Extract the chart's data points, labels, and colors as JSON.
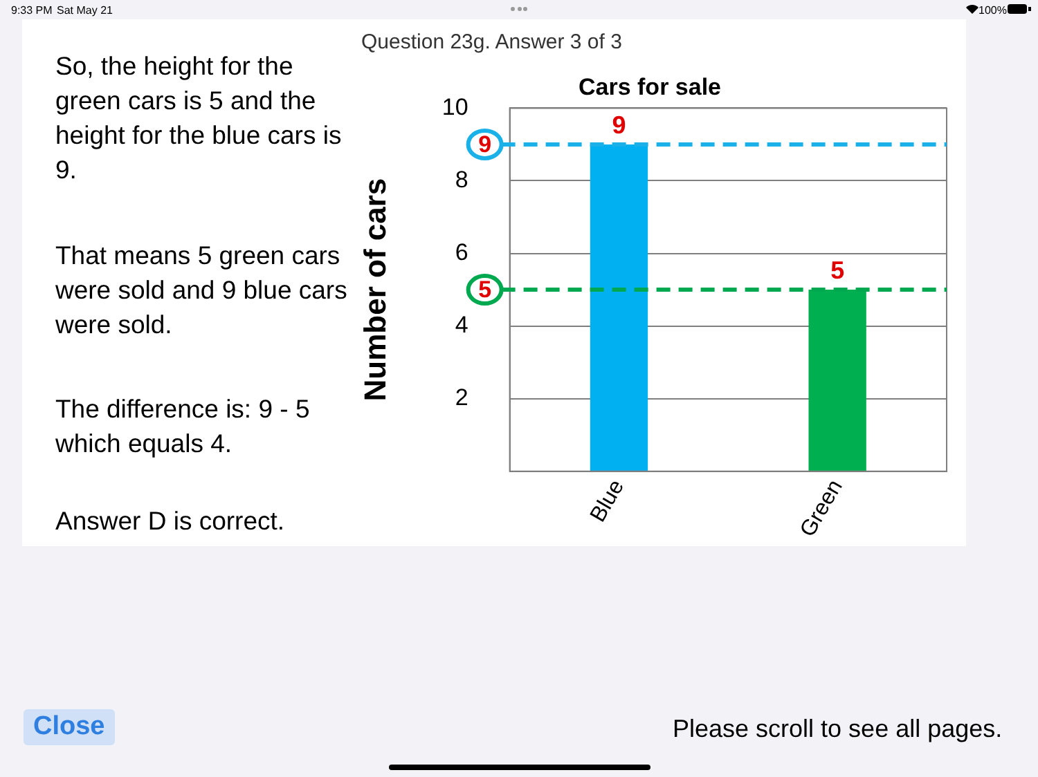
{
  "chart_data": {
    "type": "bar",
    "title": "Cars for sale",
    "ylabel": "Number of cars",
    "categories": [
      "Blue",
      "Green"
    ],
    "series": [
      {
        "colors": [
          "#00b0f0",
          "#00b050"
        ],
        "values": [
          9,
          5
        ]
      }
    ],
    "ylim": [
      0,
      10
    ],
    "yticks": [
      2,
      4,
      6,
      8,
      10
    ],
    "grid": "y",
    "legend": false,
    "data_labels": true,
    "ref_lines": [
      {
        "axis": "y",
        "value": 9,
        "label": "9",
        "color": "#1ab0e8",
        "line_style": "dashed"
      },
      {
        "axis": "y",
        "value": 5,
        "label": "5",
        "color": "#00a850",
        "line_style": "dashed"
      }
    ],
    "annotations": [
      "9:33 PM",
      "Sat May 21",
      "100%",
      "Question 23g. Answer 3 of 3",
      "So, the height for the green cars is 5 and the height for the blue cars is 9.",
      "That means 5 green cars were sold and 9 blue cars were sold.",
      "The difference is: 9 - 5 which equals 4.",
      "Answer D is correct.",
      "Close",
      "Please scroll to see all pages."
    ]
  }
}
